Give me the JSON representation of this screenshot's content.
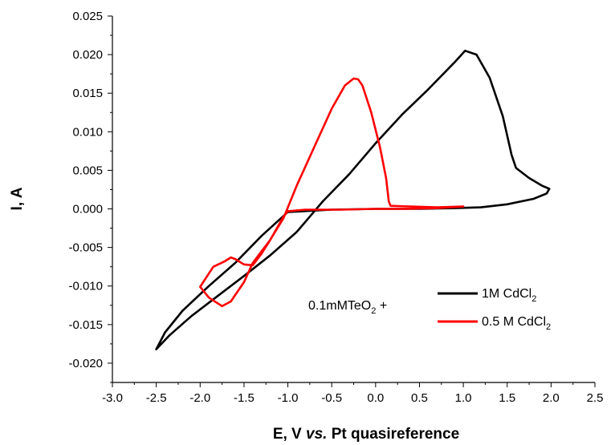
{
  "chart_data": {
    "type": "line",
    "title": "",
    "xlabel": {
      "prefix": "E, V ",
      "italic": "vs.",
      "suffix": " Pt quasireference"
    },
    "ylabel": "I, A",
    "xlim": [
      -3.0,
      2.5
    ],
    "ylim": [
      -0.0225,
      0.025
    ],
    "x_ticks": [
      "-3.0",
      "-2.5",
      "-2.0",
      "-1.5",
      "-1.0",
      "-0.5",
      "0.0",
      "0.5",
      "1.0",
      "1.5",
      "2.0",
      "2.5"
    ],
    "y_ticks": [
      "-0.020",
      "-0.015",
      "-0.010",
      "-0.005",
      "0.000",
      "0.005",
      "0.010",
      "0.015",
      "0.020",
      "0.025"
    ],
    "grid": false,
    "legend_placement": "lower-right",
    "legend_prefix": {
      "main": "0.1mMTeO",
      "sub": "2",
      "after": " +"
    },
    "series": [
      {
        "name": "1M CdCl",
        "name_sub": "2",
        "color": "#000000",
        "points": [
          [
            -2.5,
            -0.0182
          ],
          [
            -2.35,
            -0.0164
          ],
          [
            -2.1,
            -0.0139
          ],
          [
            -1.8,
            -0.0113
          ],
          [
            -1.5,
            -0.0087
          ],
          [
            -1.2,
            -0.006
          ],
          [
            -0.9,
            -0.003
          ],
          [
            -0.6,
            0.001
          ],
          [
            -0.3,
            0.0045
          ],
          [
            0.0,
            0.0085
          ],
          [
            0.3,
            0.0122
          ],
          [
            0.6,
            0.0155
          ],
          [
            0.9,
            0.019
          ],
          [
            1.02,
            0.0205
          ],
          [
            1.15,
            0.02
          ],
          [
            1.3,
            0.017
          ],
          [
            1.45,
            0.012
          ],
          [
            1.55,
            0.007
          ],
          [
            1.6,
            0.0053
          ],
          [
            1.75,
            0.004
          ],
          [
            1.9,
            0.003
          ],
          [
            1.98,
            0.0026
          ],
          [
            1.95,
            0.002
          ],
          [
            1.8,
            0.0013
          ],
          [
            1.5,
            0.0006
          ],
          [
            1.2,
            0.0002
          ],
          [
            0.9,
            0.0001
          ],
          [
            0.5,
            0.0
          ],
          [
            0.0,
            0.0
          ],
          [
            -0.5,
            -0.0001
          ],
          [
            -1.0,
            -0.0004
          ],
          [
            -1.3,
            -0.0035
          ],
          [
            -1.6,
            -0.007
          ],
          [
            -1.9,
            -0.01
          ],
          [
            -2.2,
            -0.0132
          ],
          [
            -2.4,
            -0.016
          ],
          [
            -2.5,
            -0.0182
          ]
        ]
      },
      {
        "name": "0.5 M CdCl",
        "name_sub": "2",
        "color": "#ff0000",
        "points": [
          [
            -1.05,
            -0.001
          ],
          [
            -1.1,
            -0.002
          ],
          [
            -1.2,
            -0.004
          ],
          [
            -1.3,
            -0.0058
          ],
          [
            -1.4,
            -0.0073
          ],
          [
            -1.5,
            -0.0072
          ],
          [
            -1.6,
            -0.0065
          ],
          [
            -1.65,
            -0.0063
          ],
          [
            -1.72,
            -0.0068
          ],
          [
            -1.85,
            -0.0075
          ],
          [
            -2.0,
            -0.0101
          ],
          [
            -1.9,
            -0.0115
          ],
          [
            -1.75,
            -0.0126
          ],
          [
            -1.65,
            -0.012
          ],
          [
            -1.5,
            -0.0095
          ],
          [
            -1.4,
            -0.007
          ],
          [
            -1.2,
            -0.004
          ],
          [
            -1.05,
            -0.0012
          ],
          [
            -0.9,
            0.003
          ],
          [
            -0.7,
            0.008
          ],
          [
            -0.5,
            0.013
          ],
          [
            -0.35,
            0.016
          ],
          [
            -0.25,
            0.0169
          ],
          [
            -0.2,
            0.0168
          ],
          [
            -0.15,
            0.016
          ],
          [
            -0.05,
            0.0125
          ],
          [
            0.05,
            0.008
          ],
          [
            0.12,
            0.004
          ],
          [
            0.15,
            0.001
          ],
          [
            0.17,
            0.0004
          ],
          [
            0.4,
            0.0003
          ],
          [
            0.7,
            0.0002
          ],
          [
            1.0,
            0.0003
          ],
          [
            0.7,
            0.0001
          ],
          [
            0.3,
            0.0
          ],
          [
            0.0,
            0.0
          ],
          [
            -0.4,
            -0.0001
          ],
          [
            -0.8,
            -0.0001
          ],
          [
            -1.0,
            -0.0003
          ],
          [
            -1.05,
            -0.001
          ]
        ]
      }
    ]
  }
}
